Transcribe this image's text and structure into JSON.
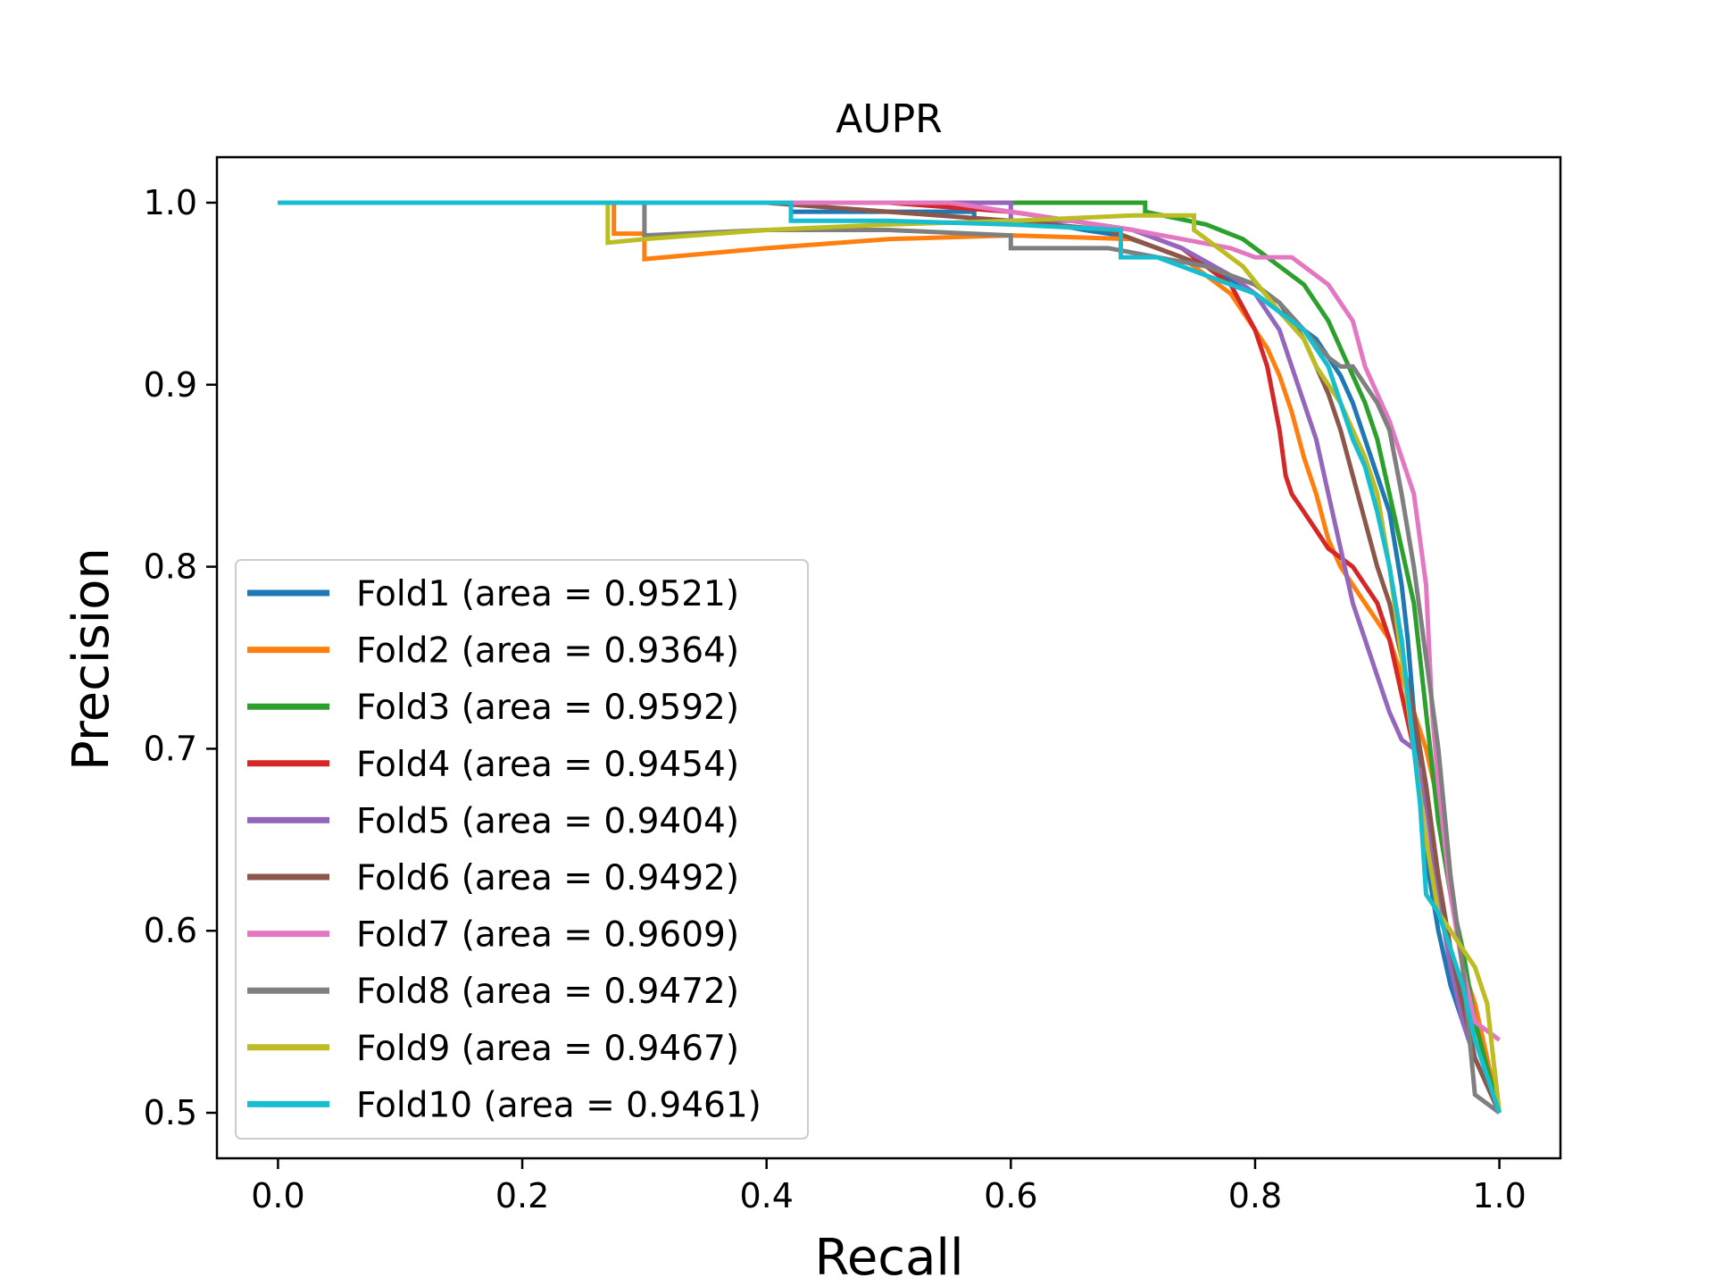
{
  "chart_data": {
    "type": "line",
    "title": "AUPR",
    "xlabel": "Recall",
    "ylabel": "Precision",
    "xlim": [
      -0.05,
      1.05
    ],
    "ylim": [
      0.475,
      1.025
    ],
    "xticks": [
      0.0,
      0.2,
      0.4,
      0.6,
      0.8,
      1.0
    ],
    "xtick_labels": [
      "0.0",
      "0.2",
      "0.4",
      "0.6",
      "0.8",
      "1.0"
    ],
    "yticks": [
      0.5,
      0.6,
      0.7,
      0.8,
      0.9,
      1.0
    ],
    "ytick_labels": [
      "0.5",
      "0.6",
      "0.7",
      "0.8",
      "0.9",
      "1.0"
    ],
    "grid": false,
    "legend_position": "lower-left",
    "series": [
      {
        "name": "Fold1 (area = 0.9521)",
        "color": "#1f77b4",
        "x": [
          0,
          0.3,
          0.42,
          0.42,
          0.57,
          0.57,
          0.62,
          0.66,
          0.69,
          0.72,
          0.74,
          0.76,
          0.78,
          0.8,
          0.82,
          0.83,
          0.84,
          0.85,
          0.86,
          0.87,
          0.88,
          0.89,
          0.9,
          0.91,
          0.92,
          0.925,
          0.93,
          0.935,
          0.94,
          0.95,
          0.96,
          0.97,
          0.98,
          1.0
        ],
        "y": [
          1.0,
          1.0,
          1.0,
          0.995,
          0.995,
          0.99,
          0.99,
          0.985,
          0.982,
          0.975,
          0.97,
          0.965,
          0.958,
          0.95,
          0.94,
          0.935,
          0.93,
          0.925,
          0.915,
          0.905,
          0.89,
          0.87,
          0.85,
          0.83,
          0.79,
          0.76,
          0.72,
          0.68,
          0.64,
          0.6,
          0.57,
          0.55,
          0.53,
          0.5
        ]
      },
      {
        "name": "Fold2 (area = 0.9364)",
        "color": "#ff7f0e",
        "x": [
          0,
          0.275,
          0.275,
          0.3,
          0.3,
          0.4,
          0.5,
          0.6,
          0.7,
          0.72,
          0.74,
          0.76,
          0.78,
          0.79,
          0.8,
          0.81,
          0.82,
          0.83,
          0.84,
          0.85,
          0.86,
          0.87,
          0.88,
          0.89,
          0.9,
          0.91,
          0.92,
          0.93,
          0.94,
          0.95,
          0.96,
          0.97,
          0.98,
          1.0
        ],
        "y": [
          1.0,
          1.0,
          0.983,
          0.983,
          0.969,
          0.975,
          0.98,
          0.982,
          0.98,
          0.975,
          0.97,
          0.96,
          0.95,
          0.94,
          0.93,
          0.92,
          0.905,
          0.885,
          0.86,
          0.84,
          0.815,
          0.8,
          0.79,
          0.78,
          0.77,
          0.76,
          0.74,
          0.72,
          0.7,
          0.67,
          0.62,
          0.58,
          0.56,
          0.5
        ]
      },
      {
        "name": "Fold3 (area = 0.9592)",
        "color": "#2ca02c",
        "x": [
          0,
          0.6,
          0.71,
          0.71,
          0.76,
          0.79,
          0.8,
          0.82,
          0.84,
          0.85,
          0.86,
          0.87,
          0.88,
          0.89,
          0.9,
          0.91,
          0.92,
          0.93,
          0.935,
          0.94,
          0.945,
          0.95,
          0.96,
          0.97,
          0.98,
          1.0
        ],
        "y": [
          1.0,
          1.0,
          1.0,
          0.995,
          0.988,
          0.98,
          0.975,
          0.965,
          0.955,
          0.945,
          0.935,
          0.92,
          0.905,
          0.89,
          0.87,
          0.84,
          0.81,
          0.78,
          0.75,
          0.72,
          0.69,
          0.66,
          0.62,
          0.59,
          0.55,
          0.5
        ]
      },
      {
        "name": "Fold4 (area = 0.9454)",
        "color": "#d62728",
        "x": [
          0,
          0.5,
          0.6,
          0.65,
          0.7,
          0.72,
          0.74,
          0.76,
          0.78,
          0.8,
          0.81,
          0.82,
          0.825,
          0.83,
          0.84,
          0.85,
          0.86,
          0.87,
          0.88,
          0.89,
          0.9,
          0.91,
          0.92,
          0.93,
          0.94,
          0.95,
          0.96,
          0.97,
          0.98,
          1.0
        ],
        "y": [
          1.0,
          1.0,
          0.995,
          0.99,
          0.985,
          0.98,
          0.975,
          0.965,
          0.955,
          0.93,
          0.91,
          0.875,
          0.85,
          0.84,
          0.83,
          0.82,
          0.81,
          0.805,
          0.8,
          0.79,
          0.78,
          0.76,
          0.73,
          0.7,
          0.67,
          0.62,
          0.58,
          0.56,
          0.53,
          0.5
        ]
      },
      {
        "name": "Fold5 (area = 0.9404)",
        "color": "#9467bd",
        "x": [
          0,
          0.55,
          0.6,
          0.6,
          0.65,
          0.7,
          0.74,
          0.78,
          0.8,
          0.82,
          0.83,
          0.84,
          0.85,
          0.86,
          0.87,
          0.88,
          0.89,
          0.9,
          0.91,
          0.92,
          0.93,
          0.94,
          0.95,
          0.96,
          0.97,
          0.98,
          1.0
        ],
        "y": [
          1.0,
          1.0,
          1.0,
          0.99,
          0.99,
          0.985,
          0.975,
          0.96,
          0.95,
          0.93,
          0.91,
          0.89,
          0.87,
          0.84,
          0.81,
          0.78,
          0.76,
          0.74,
          0.72,
          0.705,
          0.7,
          0.67,
          0.62,
          0.58,
          0.55,
          0.53,
          0.5
        ]
      },
      {
        "name": "Fold6 (area = 0.9492)",
        "color": "#8c564b",
        "x": [
          0,
          0.4,
          0.5,
          0.6,
          0.68,
          0.72,
          0.76,
          0.8,
          0.82,
          0.83,
          0.84,
          0.85,
          0.86,
          0.87,
          0.88,
          0.89,
          0.9,
          0.91,
          0.92,
          0.93,
          0.94,
          0.95,
          0.96,
          0.97,
          0.98,
          1.0
        ],
        "y": [
          1.0,
          1.0,
          0.995,
          0.99,
          0.985,
          0.975,
          0.965,
          0.955,
          0.945,
          0.935,
          0.925,
          0.91,
          0.895,
          0.875,
          0.85,
          0.825,
          0.8,
          0.78,
          0.75,
          0.72,
          0.68,
          0.63,
          0.59,
          0.56,
          0.53,
          0.5
        ]
      },
      {
        "name": "Fold7 (area = 0.9609)",
        "color": "#e377c2",
        "x": [
          0,
          0.42,
          0.42,
          0.55,
          0.6,
          0.65,
          0.7,
          0.74,
          0.78,
          0.8,
          0.82,
          0.83,
          0.84,
          0.85,
          0.86,
          0.87,
          0.88,
          0.89,
          0.9,
          0.91,
          0.92,
          0.93,
          0.94,
          0.945,
          0.95,
          0.96,
          0.97,
          0.98,
          1.0
        ],
        "y": [
          1.0,
          1.0,
          1.0,
          1.0,
          0.995,
          0.99,
          0.985,
          0.98,
          0.975,
          0.97,
          0.97,
          0.97,
          0.965,
          0.96,
          0.955,
          0.945,
          0.935,
          0.91,
          0.895,
          0.88,
          0.86,
          0.84,
          0.79,
          0.72,
          0.68,
          0.62,
          0.58,
          0.55,
          0.54
        ]
      },
      {
        "name": "Fold8 (area = 0.9472)",
        "color": "#7f7f7f",
        "x": [
          0,
          0.3,
          0.3,
          0.4,
          0.5,
          0.6,
          0.6,
          0.68,
          0.72,
          0.76,
          0.8,
          0.82,
          0.84,
          0.86,
          0.87,
          0.88,
          0.89,
          0.9,
          0.91,
          0.92,
          0.93,
          0.94,
          0.95,
          0.96,
          0.97,
          0.98,
          1.0
        ],
        "y": [
          1.0,
          1.0,
          0.982,
          0.985,
          0.985,
          0.982,
          0.975,
          0.975,
          0.97,
          0.965,
          0.955,
          0.945,
          0.93,
          0.915,
          0.91,
          0.91,
          0.9,
          0.89,
          0.875,
          0.84,
          0.8,
          0.75,
          0.7,
          0.63,
          0.58,
          0.51,
          0.5
        ]
      },
      {
        "name": "Fold9 (area = 0.9467)",
        "color": "#bcbd22",
        "x": [
          0,
          0.27,
          0.27,
          0.3,
          0.4,
          0.5,
          0.6,
          0.7,
          0.75,
          0.75,
          0.79,
          0.82,
          0.84,
          0.85,
          0.86,
          0.87,
          0.88,
          0.89,
          0.9,
          0.91,
          0.92,
          0.93,
          0.94,
          0.95,
          0.96,
          0.97,
          0.98,
          0.99,
          1.0
        ],
        "y": [
          1.0,
          1.0,
          0.978,
          0.98,
          0.985,
          0.988,
          0.99,
          0.993,
          0.993,
          0.985,
          0.965,
          0.94,
          0.925,
          0.91,
          0.9,
          0.89,
          0.875,
          0.86,
          0.84,
          0.8,
          0.75,
          0.7,
          0.65,
          0.61,
          0.6,
          0.59,
          0.58,
          0.56,
          0.5
        ]
      },
      {
        "name": "Fold10 (area = 0.9461)",
        "color": "#17becf",
        "x": [
          0,
          0.42,
          0.42,
          0.5,
          0.6,
          0.69,
          0.69,
          0.72,
          0.76,
          0.8,
          0.82,
          0.84,
          0.86,
          0.87,
          0.88,
          0.89,
          0.9,
          0.91,
          0.92,
          0.93,
          0.935,
          0.94,
          0.95,
          0.96,
          0.97,
          0.98,
          1.0
        ],
        "y": [
          1.0,
          1.0,
          0.99,
          0.99,
          0.988,
          0.985,
          0.97,
          0.97,
          0.96,
          0.95,
          0.94,
          0.93,
          0.91,
          0.89,
          0.87,
          0.855,
          0.83,
          0.8,
          0.76,
          0.7,
          0.67,
          0.62,
          0.61,
          0.59,
          0.57,
          0.54,
          0.5
        ]
      }
    ]
  }
}
